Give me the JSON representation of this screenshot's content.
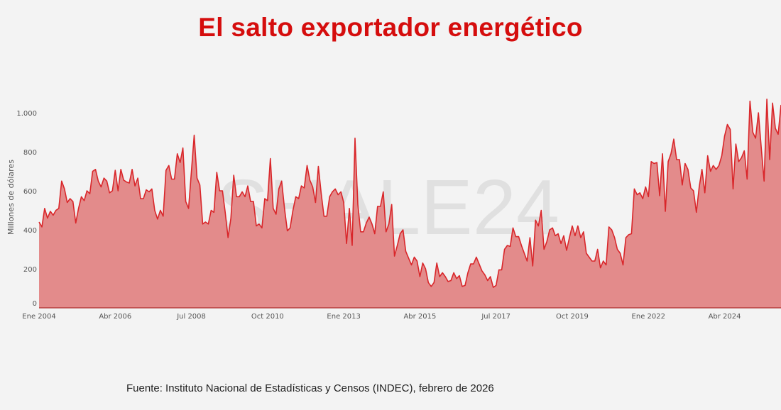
{
  "watermark": "SHALE24",
  "source": "Fuente: Instituto Nacional de Estadísticas y Censos (INDEC), febrero de 2026",
  "colors": {
    "title": "#d50d0d",
    "line": "#d9262a",
    "fill": "#e38b8b",
    "background": "#f3f3f3"
  },
  "chart_data": {
    "type": "area",
    "title": "El salto exportador energético",
    "xlabel": "",
    "ylabel": "Millones de dólares",
    "x_start": "2004-01",
    "frequency": "monthly",
    "ylim": [
      0,
      1000
    ],
    "yticks": [
      0,
      200,
      400,
      600,
      800,
      1000
    ],
    "ytick_labels": [
      "0",
      "200",
      "400",
      "600",
      "800",
      "1.000"
    ],
    "xticks": [
      0,
      27,
      54,
      81,
      108,
      135,
      162,
      189,
      216,
      243
    ],
    "xtick_labels": [
      "Ene 2004",
      "Abr 2006",
      "Jul 2008",
      "Oct 2010",
      "Ene 2013",
      "Abr 2015",
      "Jul 2017",
      "Oct 2019",
      "Ene 2022",
      "Abr 2024"
    ],
    "grid": false,
    "values": [
      440,
      415,
      510,
      460,
      495,
      475,
      500,
      510,
      650,
      610,
      540,
      560,
      545,
      435,
      510,
      570,
      550,
      600,
      585,
      700,
      710,
      650,
      620,
      665,
      650,
      590,
      600,
      705,
      600,
      710,
      655,
      645,
      640,
      710,
      625,
      665,
      560,
      560,
      605,
      595,
      610,
      500,
      455,
      500,
      470,
      705,
      730,
      660,
      660,
      790,
      745,
      820,
      545,
      510,
      700,
      885,
      665,
      630,
      430,
      440,
      430,
      500,
      490,
      695,
      600,
      600,
      490,
      360,
      460,
      680,
      570,
      570,
      595,
      570,
      625,
      545,
      545,
      420,
      430,
      410,
      560,
      550,
      765,
      510,
      480,
      610,
      650,
      510,
      395,
      410,
      500,
      570,
      560,
      625,
      615,
      730,
      655,
      620,
      540,
      725,
      590,
      470,
      470,
      570,
      595,
      610,
      580,
      595,
      540,
      330,
      510,
      320,
      870,
      530,
      390,
      390,
      435,
      465,
      430,
      380,
      520,
      520,
      595,
      390,
      430,
      530,
      265,
      320,
      380,
      400,
      290,
      255,
      220,
      260,
      240,
      160,
      230,
      200,
      130,
      110,
      130,
      230,
      160,
      180,
      160,
      135,
      140,
      180,
      150,
      165,
      110,
      115,
      180,
      225,
      225,
      260,
      225,
      190,
      170,
      140,
      160,
      105,
      115,
      195,
      195,
      300,
      320,
      315,
      410,
      365,
      365,
      320,
      280,
      240,
      360,
      215,
      450,
      420,
      500,
      300,
      340,
      400,
      410,
      370,
      380,
      330,
      370,
      295,
      360,
      420,
      370,
      420,
      360,
      390,
      280,
      260,
      240,
      240,
      300,
      205,
      240,
      220,
      415,
      400,
      360,
      300,
      280,
      220,
      360,
      375,
      380,
      610,
      580,
      590,
      560,
      620,
      570,
      750,
      740,
      745,
      575,
      790,
      495,
      750,
      790,
      865,
      760,
      760,
      630,
      740,
      710,
      615,
      600,
      490,
      620,
      710,
      590,
      780,
      700,
      730,
      710,
      730,
      780,
      880,
      940,
      915,
      610,
      840,
      750,
      770,
      805,
      660,
      1060,
      900,
      870,
      1000,
      820,
      650,
      1070,
      760,
      1050,
      920,
      890,
      1040
    ]
  }
}
